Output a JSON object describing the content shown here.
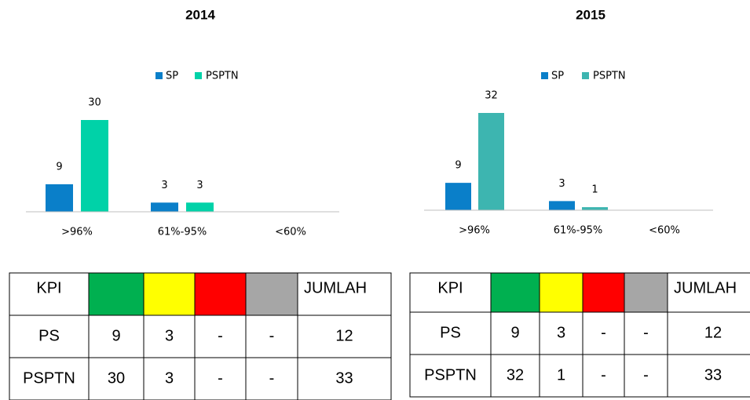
{
  "chart_data": [
    {
      "type": "bar",
      "title": "2014",
      "categories": [
        ">96%",
        "61%-95%",
        "<60%"
      ],
      "series": [
        {
          "name": "SP",
          "color": "#0a7fc9",
          "values": [
            9,
            3,
            null
          ]
        },
        {
          "name": "PSPTN",
          "color": "#00d2a8",
          "values": [
            30,
            3,
            null
          ]
        }
      ]
    },
    {
      "type": "bar",
      "title": "2015",
      "categories": [
        ">96%",
        "61%-95%",
        "<60%"
      ],
      "series": [
        {
          "name": "SP",
          "color": "#0a7fc9",
          "values": [
            9,
            3,
            null
          ]
        },
        {
          "name": "PSPTN",
          "color": "#3db5b0",
          "values": [
            32,
            1,
            null
          ]
        }
      ]
    }
  ],
  "tables": [
    {
      "header_first": "KPI",
      "header_last": "JUMLAH",
      "rows": [
        [
          "PS",
          9,
          3,
          "-",
          "-",
          12
        ],
        [
          "PSPTN",
          30,
          3,
          "-",
          "-",
          33
        ]
      ]
    },
    {
      "header_first": "KPI",
      "header_last": "JUMLAH",
      "rows": [
        [
          "PS",
          9,
          3,
          "-",
          "-",
          12
        ],
        [
          "PSPTN",
          32,
          1,
          "-",
          "-",
          33
        ]
      ]
    }
  ]
}
